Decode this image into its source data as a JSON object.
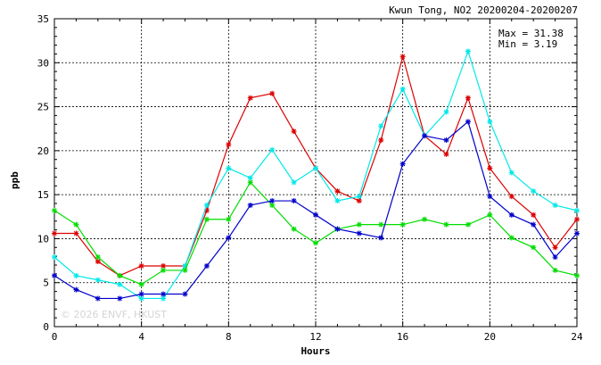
{
  "chart_data": {
    "type": "line",
    "title": "Kwun Tong, NO2 20200204-20200207",
    "xlabel": "Hours",
    "ylabel": "ppb",
    "xlim": [
      0,
      24
    ],
    "ylim": [
      0,
      35
    ],
    "x_ticks": [
      0,
      4,
      8,
      12,
      16,
      20,
      24
    ],
    "y_ticks": [
      0,
      5,
      10,
      15,
      20,
      25,
      30,
      35
    ],
    "grid": true,
    "stats": {
      "max_text": "Max = 31.38",
      "min_text": "Min =  3.19"
    },
    "watermark": "© 2026  ENVF, HKUST",
    "x": [
      0,
      1,
      2,
      3,
      4,
      5,
      6,
      7,
      8,
      9,
      10,
      11,
      12,
      13,
      14,
      15,
      16,
      17,
      18,
      19,
      20,
      21,
      22,
      23,
      24
    ],
    "series": [
      {
        "color": "#dd0000",
        "values": [
          10.6,
          10.6,
          7.4,
          5.8,
          6.9,
          6.9,
          6.9,
          13.2,
          20.7,
          26.0,
          26.5,
          22.2,
          18.0,
          15.4,
          14.3,
          21.2,
          30.7,
          21.7,
          19.6,
          26.0,
          18.0,
          14.8,
          12.7,
          9.0,
          12.2
        ]
      },
      {
        "color": "#00e8e8",
        "values": [
          7.9,
          5.8,
          5.3,
          4.8,
          3.2,
          3.2,
          6.9,
          13.8,
          18.0,
          16.9,
          20.1,
          16.4,
          18.0,
          14.3,
          14.8,
          22.8,
          27.0,
          21.7,
          24.4,
          31.3,
          23.3,
          17.5,
          15.4,
          13.8,
          13.2
        ]
      },
      {
        "color": "#00dd00",
        "values": [
          13.2,
          11.6,
          7.9,
          5.8,
          4.8,
          6.4,
          6.4,
          12.2,
          12.2,
          16.4,
          13.8,
          11.1,
          9.5,
          11.1,
          11.6,
          11.6,
          11.6,
          12.2,
          11.6,
          11.6,
          12.7,
          10.1,
          9.0,
          6.4,
          5.8
        ]
      },
      {
        "color": "#0000cc",
        "values": [
          5.8,
          4.2,
          3.2,
          3.2,
          3.7,
          3.7,
          3.7,
          6.9,
          10.1,
          13.8,
          14.3,
          14.3,
          12.7,
          11.1,
          10.6,
          10.1,
          18.5,
          21.7,
          21.2,
          23.3,
          14.8,
          12.7,
          11.6,
          7.9,
          10.6
        ]
      }
    ]
  }
}
